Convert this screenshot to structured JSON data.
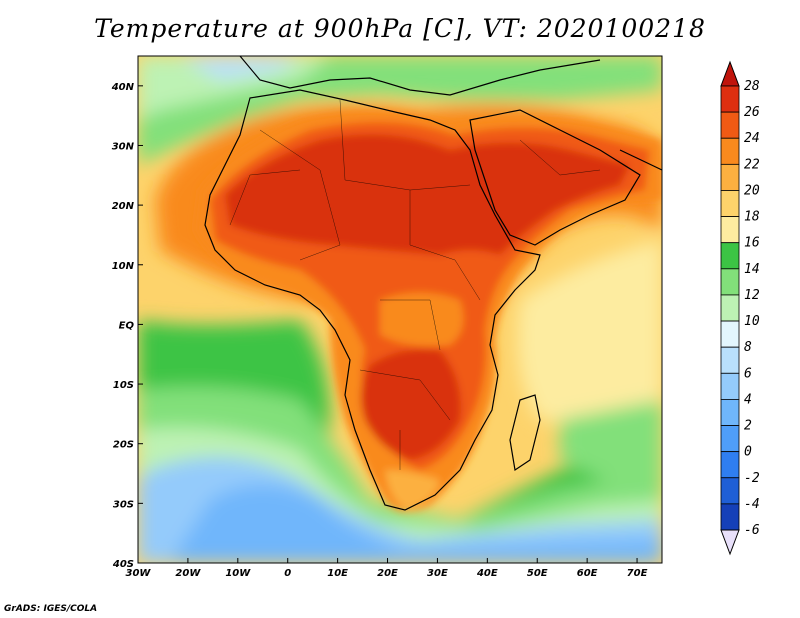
{
  "title": "Temperature at 900hPa [C], VT: 2020100218",
  "credit": "GrADS: IGES/COLA",
  "map": {
    "lon_range": [
      -30,
      75
    ],
    "lat_range": [
      -40,
      45
    ],
    "lon_ticks": [
      {
        "value": -30,
        "label": "30W"
      },
      {
        "value": -20,
        "label": "20W"
      },
      {
        "value": -10,
        "label": "10W"
      },
      {
        "value": 0,
        "label": "0"
      },
      {
        "value": 10,
        "label": "10E"
      },
      {
        "value": 20,
        "label": "20E"
      },
      {
        "value": 30,
        "label": "30E"
      },
      {
        "value": 40,
        "label": "40E"
      },
      {
        "value": 50,
        "label": "50E"
      },
      {
        "value": 60,
        "label": "60E"
      },
      {
        "value": 70,
        "label": "70E"
      }
    ],
    "lat_ticks": [
      {
        "value": 40,
        "label": "40N"
      },
      {
        "value": 30,
        "label": "30N"
      },
      {
        "value": 20,
        "label": "20N"
      },
      {
        "value": 10,
        "label": "10N"
      },
      {
        "value": 0,
        "label": "EQ"
      },
      {
        "value": -10,
        "label": "10S"
      },
      {
        "value": -20,
        "label": "20S"
      },
      {
        "value": -30,
        "label": "30S"
      },
      {
        "value": -40,
        "label": "40S"
      }
    ]
  },
  "colorbar": {
    "levels": [
      {
        "value": -6,
        "label": "-6",
        "color": "#0a1f8c"
      },
      {
        "value": -4,
        "label": "-4",
        "color": "#1540b8"
      },
      {
        "value": -2,
        "label": "-2",
        "color": "#1f5fd6"
      },
      {
        "value": 0,
        "label": "0",
        "color": "#2f7ef0"
      },
      {
        "value": 2,
        "label": "2",
        "color": "#4f9ef8"
      },
      {
        "value": 4,
        "label": "4",
        "color": "#6fb6fb"
      },
      {
        "value": 6,
        "label": "6",
        "color": "#94cbfb"
      },
      {
        "value": 8,
        "label": "8",
        "color": "#b9e0fc"
      },
      {
        "value": 10,
        "label": "10",
        "color": "#e3f6fd"
      },
      {
        "value": 12,
        "label": "12",
        "color": "#bdf2b4"
      },
      {
        "value": 14,
        "label": "14",
        "color": "#82e07a"
      },
      {
        "value": 16,
        "label": "16",
        "color": "#3cc444"
      },
      {
        "value": 18,
        "label": "18",
        "color": "#fdeca0"
      },
      {
        "value": 20,
        "label": "20",
        "color": "#fdd36b"
      },
      {
        "value": 22,
        "label": "22",
        "color": "#fcb040"
      },
      {
        "value": 24,
        "label": "24",
        "color": "#f98a1e"
      },
      {
        "value": 26,
        "label": "26",
        "color": "#f05a14"
      },
      {
        "value": 28,
        "label": "28",
        "color": "#de2f10"
      }
    ],
    "under_color": "#e8e0fa",
    "over_color": "#c0140c"
  },
  "colors": {
    "ocean_background": "#fcd07a",
    "land_hot": "#d9300e",
    "land_warm": "#f05a14",
    "coast": "#000000"
  }
}
